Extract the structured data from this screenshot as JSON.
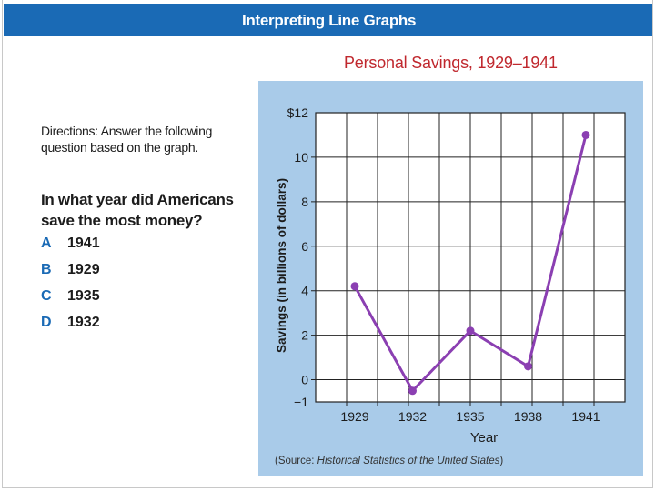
{
  "header": {
    "title": "Interpreting Line Graphs"
  },
  "directions": {
    "label": "Directions:",
    "text": " Answer the following question based on the graph."
  },
  "question": {
    "text": "In what year did Americans save the most money?",
    "choices": [
      {
        "letter": "A",
        "text": "1941"
      },
      {
        "letter": "B",
        "text": "1929"
      },
      {
        "letter": "C",
        "text": "1935"
      },
      {
        "letter": "D",
        "text": "1932"
      }
    ]
  },
  "source": {
    "prefix": "(Source:  ",
    "title": "Historical Statistics of the United States",
    "suffix": ")"
  },
  "colors": {
    "banner": "#1a6ab5",
    "panel": "#a9cbe9",
    "line": "#8b3fb2",
    "title": "#c0282e",
    "letter": "#1a6ab5"
  },
  "chart_data": {
    "type": "line",
    "title": "Personal Savings, 1929–1941",
    "xlabel": "Year",
    "ylabel": "Savings (in billions of dollars)",
    "categories": [
      "1929",
      "1932",
      "1935",
      "1938",
      "1941"
    ],
    "values": [
      4.2,
      -0.5,
      2.2,
      0.6,
      11.0
    ],
    "ylim": [
      -1,
      12
    ],
    "yticks": [
      -1,
      0,
      2,
      4,
      6,
      8,
      10,
      12
    ],
    "ytick_labels": [
      "−1",
      "0",
      "2",
      "4",
      "6",
      "8",
      "10",
      "$12"
    ],
    "grid": true,
    "legend": "none"
  }
}
